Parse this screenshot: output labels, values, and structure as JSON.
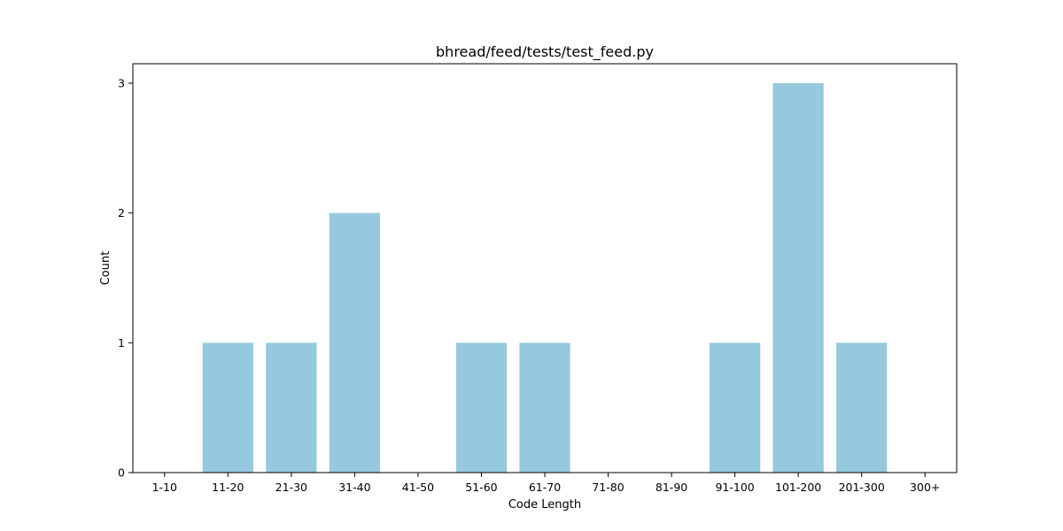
{
  "chart_data": {
    "type": "bar",
    "title": "bhread/feed/tests/test_feed.py",
    "xlabel": "Code Length",
    "ylabel": "Count",
    "categories": [
      "1-10",
      "11-20",
      "21-30",
      "31-40",
      "41-50",
      "51-60",
      "61-70",
      "71-80",
      "81-90",
      "91-100",
      "101-200",
      "201-300",
      "300+"
    ],
    "values": [
      0,
      1,
      1,
      2,
      0,
      1,
      1,
      0,
      0,
      1,
      3,
      1,
      0
    ],
    "yticks": [
      0,
      1,
      2,
      3
    ],
    "ylim": [
      0,
      3.15
    ],
    "grid": false,
    "legend": "none",
    "bar_color": "#96c9dd"
  }
}
